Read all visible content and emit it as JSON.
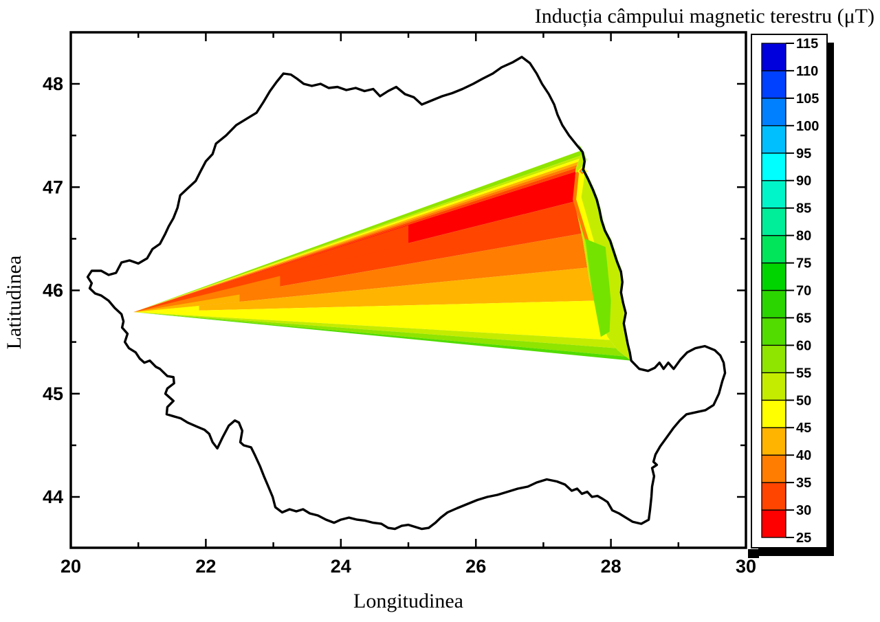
{
  "chart_data": {
    "type": "contour",
    "title": "Inducția câmpului magnetic terestru (μT)",
    "xlabel": "Longitudinea",
    "ylabel": "Latitudinea",
    "xlim": [
      20,
      30
    ],
    "ylim": [
      43.5,
      48.5
    ],
    "grid": false,
    "x_ticks_major": [
      20,
      22,
      24,
      26,
      28,
      30
    ],
    "x_ticks_minor": [
      21,
      23,
      25,
      27,
      29
    ],
    "y_ticks_major": [
      44,
      45,
      46,
      47,
      48
    ],
    "y_ticks_minor": [
      44.5,
      45.5,
      46.5,
      47.5
    ],
    "colorbar": {
      "unit": "μT",
      "levels": [
        25,
        30,
        35,
        40,
        45,
        50,
        55,
        60,
        65,
        70,
        75,
        80,
        85,
        90,
        95,
        100,
        105,
        110,
        115
      ],
      "colors": [
        "#FF0000",
        "#FF4500",
        "#FF7D00",
        "#FFB400",
        "#FFFF00",
        "#C4EC00",
        "#8FE400",
        "#52DC00",
        "#2BD500",
        "#00D400",
        "#00E55A",
        "#00EE99",
        "#00F5C8",
        "#00FFFF",
        "#00BFFF",
        "#0080FF",
        "#0040FF",
        "#0000DD"
      ]
    },
    "map_outline_name": "Romania",
    "romania_border": [
      [
        20.25,
        46.13
      ],
      [
        20.31,
        46.19
      ],
      [
        20.45,
        46.19
      ],
      [
        20.56,
        46.15
      ],
      [
        20.67,
        46.17
      ],
      [
        20.75,
        46.27
      ],
      [
        20.87,
        46.29
      ],
      [
        21.0,
        46.26
      ],
      [
        21.13,
        46.31
      ],
      [
        21.21,
        46.4
      ],
      [
        21.32,
        46.45
      ],
      [
        21.4,
        46.55
      ],
      [
        21.45,
        46.62
      ],
      [
        21.52,
        46.7
      ],
      [
        21.58,
        46.8
      ],
      [
        21.62,
        46.92
      ],
      [
        21.75,
        47.0
      ],
      [
        21.85,
        47.06
      ],
      [
        21.92,
        47.15
      ],
      [
        22.0,
        47.25
      ],
      [
        22.1,
        47.32
      ],
      [
        22.15,
        47.42
      ],
      [
        22.3,
        47.5
      ],
      [
        22.45,
        47.6
      ],
      [
        22.6,
        47.66
      ],
      [
        22.75,
        47.72
      ],
      [
        22.85,
        47.82
      ],
      [
        22.95,
        47.93
      ],
      [
        23.05,
        48.02
      ],
      [
        23.15,
        48.1
      ],
      [
        23.26,
        48.09
      ],
      [
        23.35,
        48.05
      ],
      [
        23.45,
        48.0
      ],
      [
        23.57,
        47.98
      ],
      [
        23.7,
        48.0
      ],
      [
        23.82,
        47.96
      ],
      [
        23.95,
        47.97
      ],
      [
        24.08,
        47.94
      ],
      [
        24.22,
        47.96
      ],
      [
        24.35,
        47.93
      ],
      [
        24.48,
        47.95
      ],
      [
        24.58,
        47.88
      ],
      [
        24.7,
        47.93
      ],
      [
        24.82,
        47.97
      ],
      [
        24.95,
        47.9
      ],
      [
        25.08,
        47.87
      ],
      [
        25.2,
        47.8
      ],
      [
        25.35,
        47.84
      ],
      [
        25.5,
        47.88
      ],
      [
        25.65,
        47.91
      ],
      [
        25.8,
        47.95
      ],
      [
        25.96,
        48.0
      ],
      [
        26.1,
        48.05
      ],
      [
        26.25,
        48.1
      ],
      [
        26.38,
        48.16
      ],
      [
        26.55,
        48.21
      ],
      [
        26.68,
        48.26
      ],
      [
        26.8,
        48.2
      ],
      [
        26.9,
        48.1
      ],
      [
        26.98,
        48.0
      ],
      [
        27.08,
        47.9
      ],
      [
        27.16,
        47.8
      ],
      [
        27.21,
        47.7
      ],
      [
        27.28,
        47.6
      ],
      [
        27.38,
        47.5
      ],
      [
        27.49,
        47.41
      ],
      [
        27.58,
        47.34
      ],
      [
        27.61,
        47.25
      ],
      [
        27.59,
        47.17
      ],
      [
        27.66,
        47.08
      ],
      [
        27.73,
        46.98
      ],
      [
        27.79,
        46.88
      ],
      [
        27.83,
        46.78
      ],
      [
        27.86,
        46.68
      ],
      [
        27.91,
        46.58
      ],
      [
        27.99,
        46.48
      ],
      [
        28.04,
        46.38
      ],
      [
        28.09,
        46.28
      ],
      [
        28.15,
        46.18
      ],
      [
        28.17,
        46.08
      ],
      [
        28.15,
        45.98
      ],
      [
        28.18,
        45.88
      ],
      [
        28.22,
        45.78
      ],
      [
        28.19,
        45.68
      ],
      [
        28.22,
        45.58
      ],
      [
        28.25,
        45.48
      ],
      [
        28.28,
        45.4
      ],
      [
        28.3,
        45.32
      ],
      [
        28.42,
        45.24
      ],
      [
        28.55,
        45.22
      ],
      [
        28.65,
        45.25
      ],
      [
        28.72,
        45.3
      ],
      [
        28.78,
        45.24
      ],
      [
        28.85,
        45.3
      ],
      [
        28.93,
        45.24
      ],
      [
        29.03,
        45.33
      ],
      [
        29.13,
        45.4
      ],
      [
        29.25,
        45.44
      ],
      [
        29.39,
        45.46
      ],
      [
        29.54,
        45.42
      ],
      [
        29.62,
        45.37
      ],
      [
        29.67,
        45.3
      ],
      [
        29.69,
        45.2
      ],
      [
        29.65,
        45.12
      ],
      [
        29.6,
        45.0
      ],
      [
        29.52,
        44.89
      ],
      [
        29.4,
        44.84
      ],
      [
        29.26,
        44.82
      ],
      [
        29.12,
        44.8
      ],
      [
        29.02,
        44.74
      ],
      [
        28.93,
        44.67
      ],
      [
        28.83,
        44.58
      ],
      [
        28.73,
        44.49
      ],
      [
        28.66,
        44.41
      ],
      [
        28.63,
        44.34
      ],
      [
        28.68,
        44.31
      ],
      [
        28.61,
        44.28
      ],
      [
        28.64,
        44.2
      ],
      [
        28.61,
        44.1
      ],
      [
        28.6,
        44.0
      ],
      [
        28.58,
        43.88
      ],
      [
        28.56,
        43.78
      ],
      [
        28.45,
        43.74
      ],
      [
        28.32,
        43.76
      ],
      [
        28.22,
        43.8
      ],
      [
        28.12,
        43.84
      ],
      [
        28.02,
        43.87
      ],
      [
        27.95,
        43.95
      ],
      [
        27.88,
        43.98
      ],
      [
        27.8,
        44.01
      ],
      [
        27.72,
        44.0
      ],
      [
        27.65,
        44.05
      ],
      [
        27.57,
        44.03
      ],
      [
        27.5,
        44.08
      ],
      [
        27.42,
        44.06
      ],
      [
        27.32,
        44.12
      ],
      [
        27.2,
        44.15
      ],
      [
        27.05,
        44.17
      ],
      [
        26.9,
        44.14
      ],
      [
        26.77,
        44.1
      ],
      [
        26.62,
        44.08
      ],
      [
        26.47,
        44.05
      ],
      [
        26.32,
        44.02
      ],
      [
        26.17,
        44.0
      ],
      [
        26.02,
        43.97
      ],
      [
        25.87,
        43.93
      ],
      [
        25.72,
        43.89
      ],
      [
        25.58,
        43.85
      ],
      [
        25.48,
        43.8
      ],
      [
        25.4,
        43.75
      ],
      [
        25.3,
        43.7
      ],
      [
        25.2,
        43.69
      ],
      [
        25.1,
        43.71
      ],
      [
        25.0,
        43.73
      ],
      [
        24.9,
        43.72
      ],
      [
        24.8,
        43.69
      ],
      [
        24.7,
        43.7
      ],
      [
        24.6,
        43.74
      ],
      [
        24.48,
        43.75
      ],
      [
        24.36,
        43.77
      ],
      [
        24.24,
        43.78
      ],
      [
        24.12,
        43.8
      ],
      [
        24.0,
        43.78
      ],
      [
        23.9,
        43.75
      ],
      [
        23.78,
        43.78
      ],
      [
        23.66,
        43.82
      ],
      [
        23.54,
        43.84
      ],
      [
        23.44,
        43.88
      ],
      [
        23.34,
        43.86
      ],
      [
        23.24,
        43.88
      ],
      [
        23.13,
        43.85
      ],
      [
        23.03,
        43.9
      ],
      [
        22.99,
        44.0
      ],
      [
        22.92,
        44.11
      ],
      [
        22.86,
        44.2
      ],
      [
        22.8,
        44.3
      ],
      [
        22.73,
        44.4
      ],
      [
        22.67,
        44.48
      ],
      [
        22.56,
        44.5
      ],
      [
        22.51,
        44.53
      ],
      [
        22.54,
        44.64
      ],
      [
        22.49,
        44.72
      ],
      [
        22.43,
        44.74
      ],
      [
        22.34,
        44.69
      ],
      [
        22.25,
        44.58
      ],
      [
        22.17,
        44.47
      ],
      [
        22.1,
        44.53
      ],
      [
        22.05,
        44.61
      ],
      [
        21.98,
        44.65
      ],
      [
        21.87,
        44.68
      ],
      [
        21.73,
        44.72
      ],
      [
        21.63,
        44.76
      ],
      [
        21.42,
        44.8
      ],
      [
        21.43,
        44.87
      ],
      [
        21.52,
        44.93
      ],
      [
        21.4,
        45.0
      ],
      [
        21.43,
        45.05
      ],
      [
        21.53,
        45.1
      ],
      [
        21.52,
        45.16
      ],
      [
        21.43,
        45.17
      ],
      [
        21.32,
        45.24
      ],
      [
        21.26,
        45.26
      ],
      [
        21.17,
        45.32
      ],
      [
        21.09,
        45.3
      ],
      [
        21.02,
        45.34
      ],
      [
        20.96,
        45.4
      ],
      [
        20.86,
        45.44
      ],
      [
        20.8,
        45.5
      ],
      [
        20.84,
        45.58
      ],
      [
        20.76,
        45.64
      ],
      [
        20.78,
        45.7
      ],
      [
        20.75,
        45.77
      ],
      [
        20.65,
        45.83
      ],
      [
        20.56,
        45.9
      ],
      [
        20.45,
        45.95
      ],
      [
        20.36,
        45.97
      ],
      [
        20.28,
        46.02
      ],
      [
        20.31,
        46.07
      ]
    ],
    "contour_fan": {
      "apex": [
        20.93,
        45.79
      ],
      "edge": [
        [
          27.58,
          47.36
        ],
        [
          27.48,
          47.18
        ],
        [
          27.45,
          46.88
        ],
        [
          27.58,
          46.5
        ],
        [
          27.68,
          46.1
        ],
        [
          27.8,
          45.8
        ],
        [
          27.95,
          45.55
        ],
        [
          28.1,
          45.42
        ],
        [
          28.3,
          45.32
        ]
      ],
      "bands": [
        {
          "hi": 47.36,
          "lo": 47.305,
          "range": "55-60",
          "color": "#8FE400"
        },
        {
          "hi": 47.305,
          "lo": 47.275,
          "range": "50-55",
          "color": "#C4EC00"
        },
        {
          "hi": 47.275,
          "lo": 47.245,
          "range": "45-50",
          "color": "#FFFF00"
        },
        {
          "hi": 47.245,
          "lo": 47.215,
          "range": "40-45",
          "color": "#FFB400"
        },
        {
          "hi": 47.215,
          "lo": 47.185,
          "range": "35-40",
          "color": "#FF7D00"
        },
        {
          "hi": 47.185,
          "lo": 47.15,
          "range": "30-35",
          "color": "#FF4500"
        },
        {
          "hi": 47.15,
          "lo": 46.86,
          "range": "25-30",
          "color": "#FF0000"
        },
        {
          "hi": 46.86,
          "lo": 46.55,
          "range": "30-35",
          "color": "#FF4500"
        },
        {
          "hi": 46.55,
          "lo": 46.22,
          "range": "35-40",
          "color": "#FF7D00"
        },
        {
          "hi": 46.22,
          "lo": 45.9,
          "range": "40-45",
          "color": "#FFB400"
        },
        {
          "hi": 45.9,
          "lo": 45.52,
          "range": "45-50",
          "color": "#FFFF00"
        },
        {
          "hi": 45.52,
          "lo": 45.44,
          "range": "50-55",
          "color": "#C4EC00"
        },
        {
          "hi": 45.44,
          "lo": 45.36,
          "range": "55-60",
          "color": "#8FE400"
        },
        {
          "hi": 45.36,
          "lo": 45.32,
          "range": "60-65",
          "color": "#52DC00"
        }
      ],
      "tip_overrides": [
        {
          "points": [
            [
              20.93,
              45.79
            ],
            [
              25.0,
              46.63
            ],
            [
              25.0,
              46.45
            ]
          ],
          "color": "#FF4500"
        },
        {
          "points": [
            [
              20.93,
              45.79
            ],
            [
              23.1,
              46.14
            ],
            [
              23.1,
              46.03
            ]
          ],
          "color": "#FF7D00"
        },
        {
          "points": [
            [
              20.93,
              45.79
            ],
            [
              22.5,
              45.96
            ],
            [
              22.5,
              45.89
            ]
          ],
          "color": "#FFB400"
        },
        {
          "points": [
            [
              20.93,
              45.79
            ],
            [
              21.9,
              45.85
            ],
            [
              21.9,
              45.805
            ]
          ],
          "color": "#FFFF00"
        }
      ],
      "strip_color": "#C4EC00",
      "strip_border_arc": [
        [
          27.58,
          47.34
        ],
        [
          27.61,
          47.25
        ],
        [
          27.59,
          47.17
        ],
        [
          27.66,
          47.08
        ],
        [
          27.73,
          46.98
        ],
        [
          27.79,
          46.88
        ],
        [
          27.83,
          46.78
        ],
        [
          27.86,
          46.68
        ],
        [
          27.91,
          46.58
        ],
        [
          27.99,
          46.48
        ],
        [
          28.04,
          46.38
        ],
        [
          28.09,
          46.28
        ],
        [
          28.15,
          46.18
        ],
        [
          28.17,
          46.08
        ],
        [
          28.15,
          45.98
        ],
        [
          28.18,
          45.88
        ],
        [
          28.22,
          45.78
        ],
        [
          28.19,
          45.68
        ],
        [
          28.22,
          45.58
        ],
        [
          28.25,
          45.48
        ],
        [
          28.28,
          45.4
        ],
        [
          28.3,
          45.32
        ]
      ],
      "border_sliver": {
        "color": "#70E200",
        "width": 4,
        "end_index": 13
      },
      "slivers": [
        {
          "points": [
            [
              27.56,
              47.12
            ],
            [
              27.51,
              46.9
            ],
            [
              27.83,
              46.17
            ]
          ],
          "color": "#FFFF00",
          "width": 10
        },
        {
          "points": [
            [
              27.5,
              47.13
            ],
            [
              27.46,
              46.88
            ],
            [
              27.78,
              46.2
            ]
          ],
          "color": "#FF7D00",
          "width": 5
        }
      ],
      "wedge": {
        "points": [
          [
            27.62,
            46.5
          ],
          [
            27.92,
            46.42
          ],
          [
            28.0,
            45.9
          ],
          [
            27.98,
            45.6
          ],
          [
            27.85,
            45.55
          ],
          [
            27.72,
            46.0
          ]
        ],
        "color": "#74E300"
      },
      "cap": {
        "points": [
          [
            27.52,
            47.42
          ],
          [
            27.58,
            47.36
          ],
          [
            27.65,
            47.25
          ],
          [
            27.58,
            47.31
          ]
        ],
        "color": "#6FE000"
      },
      "point_feature": {
        "center": [
          27.575,
          47.155
        ],
        "rings": [
          {
            "r": 7,
            "color": "#FFFF00"
          },
          {
            "r": 4.5,
            "color": "#FF7D00"
          },
          {
            "r": 1.8,
            "color": "#00FFFF"
          }
        ]
      }
    }
  }
}
